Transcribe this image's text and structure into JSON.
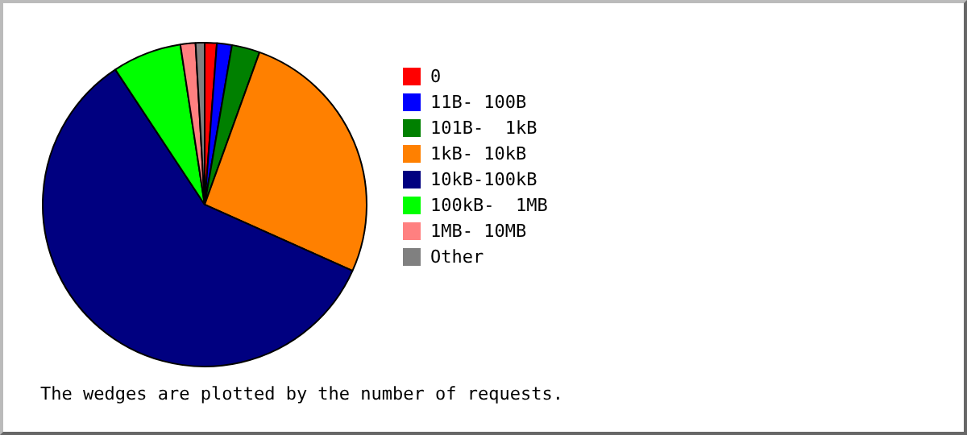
{
  "chart_data": {
    "type": "pie",
    "categories": [
      "0",
      "11B- 100B",
      "101B-  1kB",
      "1kB- 10kB",
      "10kB-100kB",
      "100kB-  1MB",
      "1MB- 10MB",
      "Other"
    ],
    "values": [
      1.2,
      1.5,
      2.8,
      26.2,
      59.0,
      6.9,
      1.5,
      0.9
    ],
    "colors": [
      "#ff0000",
      "#0000ff",
      "#008000",
      "#ff8000",
      "#000080",
      "#00ff00",
      "#ff8080",
      "#808080"
    ],
    "legend": "right",
    "annotations": [
      "The wedges are plotted by the number of requests."
    ]
  }
}
